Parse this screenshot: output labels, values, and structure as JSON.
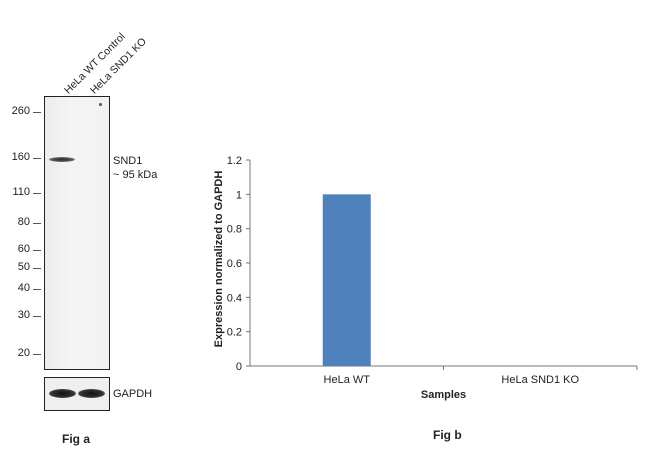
{
  "figure_a": {
    "lanes": [
      "HeLa WT Control",
      "HeLa SND1 KO"
    ],
    "mw_markers": [
      "260",
      "160",
      "110",
      "80",
      "60",
      "50",
      "40",
      "30",
      "20"
    ],
    "band_label_line1": "SND1",
    "band_label_line2": "~ 95 kDa",
    "loading_control": "GAPDH",
    "caption": "Fig a"
  },
  "figure_b": {
    "caption": "Fig b"
  },
  "chart_data": {
    "type": "bar",
    "categories": [
      "HeLa WT",
      "HeLa SND1 KO"
    ],
    "values": [
      1.0,
      0.0
    ],
    "xlabel": "Samples",
    "ylabel": "Expression  normalized to GAPDH",
    "ylim": [
      0,
      1.2
    ],
    "yticks": [
      "0",
      "0.2",
      "0.4",
      "0.6",
      "0.8",
      "1",
      "1.2"
    ],
    "bar_color": "#4f81bd",
    "grid": false,
    "legend": "none"
  }
}
